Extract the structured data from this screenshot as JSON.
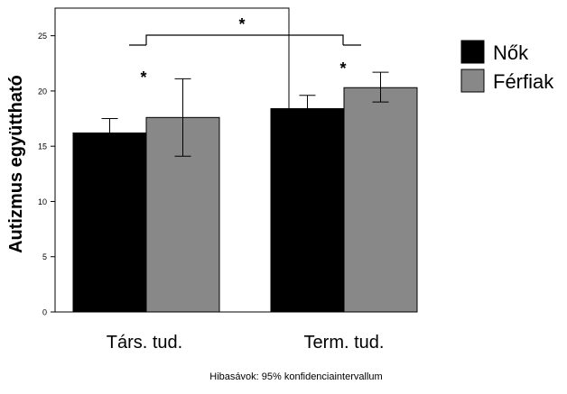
{
  "chart_data": {
    "type": "bar",
    "ylabel": "Autizmus együttható",
    "footnote": "Hibasávok: 95% konfidenciaintervallum",
    "categories": [
      "Társ. tud.",
      "Term. tud."
    ],
    "ylim": [
      0,
      27.5
    ],
    "yticks": [
      0,
      5,
      10,
      15,
      20,
      25
    ],
    "grid": false,
    "legend_position": "right",
    "series": [
      {
        "name": "Nők",
        "color": "#000000",
        "values": [
          16.2,
          18.4
        ],
        "ci_low": [
          15.0,
          17.3
        ],
        "ci_high": [
          17.5,
          19.6
        ]
      },
      {
        "name": "Férfiak",
        "color": "#888888",
        "values": [
          17.6,
          20.3
        ],
        "ci_low": [
          14.1,
          19.0
        ],
        "ci_high": [
          21.1,
          21.7
        ]
      }
    ],
    "annotations": [
      {
        "text": "*",
        "meaning": "significant difference between groups",
        "category": "Társ. tud."
      },
      {
        "text": "*",
        "meaning": "significant difference between groups",
        "category": "Term. tud."
      },
      {
        "text": "*",
        "meaning": "significant difference between categories",
        "category": "between"
      }
    ]
  }
}
